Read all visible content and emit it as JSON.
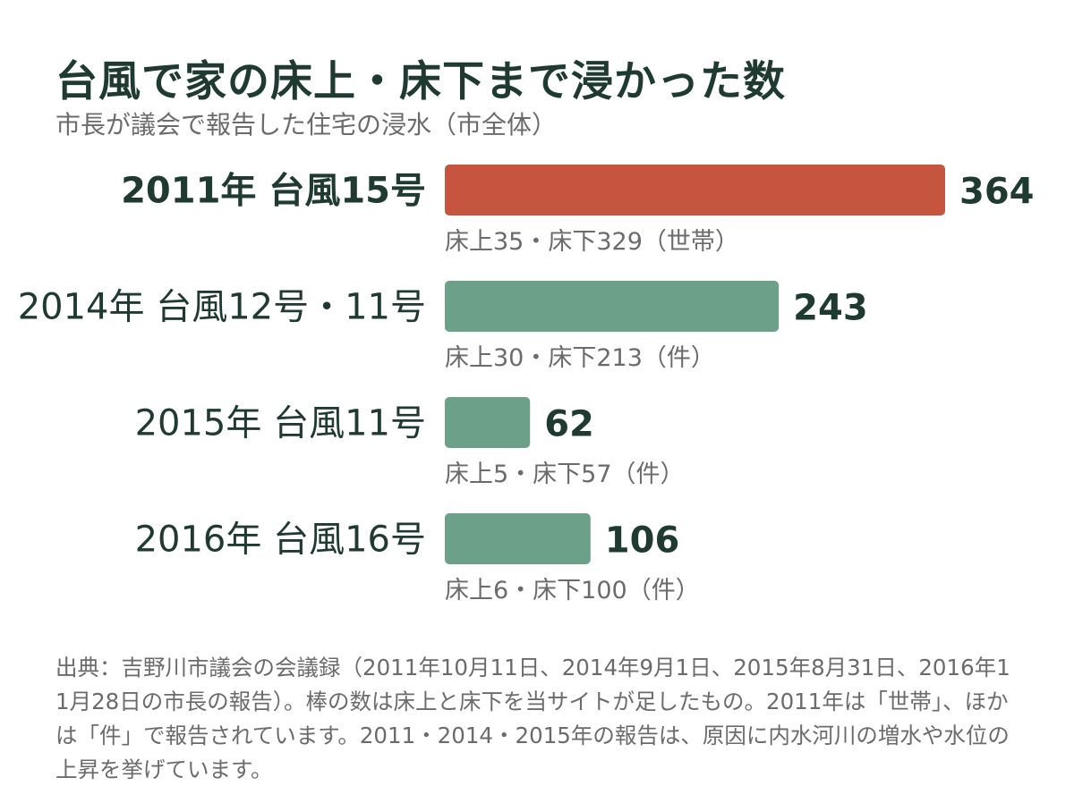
{
  "header": {
    "title": "台風で家の床上・床下まで浸かった数",
    "subtitle": "市長が議会で報告した住宅の浸水（市全体）"
  },
  "colors": {
    "highlight": "#c6553f",
    "default": "#6ca088",
    "text": "#1f3a30",
    "muted": "#6b6b6b"
  },
  "chart_data": {
    "type": "bar",
    "orientation": "horizontal",
    "categories": [
      "2011年 台風15号",
      "2014年 台風12号・11号",
      "2015年 台風11号",
      "2016年 台風16号"
    ],
    "values": [
      364,
      243,
      62,
      106
    ],
    "details": [
      "床上35・床下329（世帯）",
      "床上30・床下213（件）",
      "床上5・床下57（件）",
      "床上6・床下100（件）"
    ],
    "highlight_index": 0,
    "grid": false,
    "legend": "none"
  },
  "footer": {
    "note": "出典：吉野川市議会の会議録（2011年10月11日、2014年9月1日、2015年8月31日、2016年11月28日の市長の報告）。棒の数は床上と床下を当サイトが足したもの。2011年は「世帯」、ほかは「件」で報告されています。2011・2014・2015年の報告は、原因に内水河川の増水や水位の上昇を挙げています。"
  }
}
